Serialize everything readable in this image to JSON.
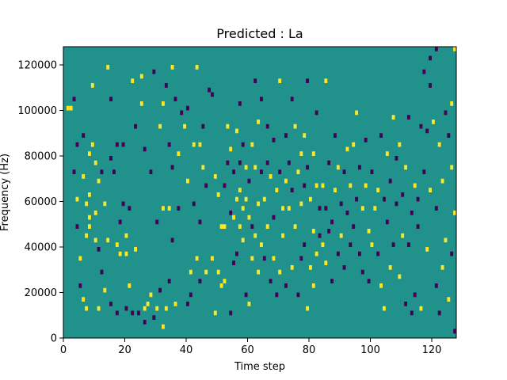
{
  "chart_data": {
    "type": "heatmap",
    "title": "Predicted : La",
    "xlabel": "Time step",
    "ylabel": "Frequency (Hz)",
    "xlim": [
      0,
      128
    ],
    "ylim": [
      0,
      128000
    ],
    "xticks": [
      0,
      20,
      40,
      60,
      80,
      100,
      120
    ],
    "yticks": [
      0,
      20000,
      40000,
      60000,
      80000,
      100000,
      120000
    ],
    "xtick_labels": [
      "0",
      "20",
      "40",
      "60",
      "80",
      "100",
      "120"
    ],
    "ytick_labels": [
      "0",
      "20000",
      "40000",
      "60000",
      "80000",
      "100000",
      "120000"
    ],
    "colors": {
      "background": "#21918c",
      "high": "#fde725",
      "low": "#440154"
    },
    "value_legend": {
      "background": 0,
      "high": 1,
      "low": -1
    },
    "cell_height_hz": 2000,
    "cells": [
      [
        1,
        100000,
        1
      ],
      [
        2,
        100000,
        1
      ],
      [
        3,
        72000,
        -1
      ],
      [
        3,
        104000,
        -1
      ],
      [
        4,
        84000,
        -1
      ],
      [
        4,
        60000,
        1
      ],
      [
        4,
        48000,
        -1
      ],
      [
        5,
        34000,
        1
      ],
      [
        5,
        22000,
        -1
      ],
      [
        6,
        88000,
        -1
      ],
      [
        6,
        70000,
        1
      ],
      [
        6,
        16000,
        1
      ],
      [
        7,
        58000,
        1
      ],
      [
        7,
        44000,
        1
      ],
      [
        7,
        12000,
        1
      ],
      [
        8,
        80000,
        1
      ],
      [
        8,
        62000,
        1
      ],
      [
        8,
        52000,
        1
      ],
      [
        8,
        48000,
        1
      ],
      [
        9,
        110000,
        1
      ],
      [
        9,
        84000,
        1
      ],
      [
        10,
        76000,
        1
      ],
      [
        10,
        54000,
        1
      ],
      [
        10,
        42000,
        1
      ],
      [
        11,
        68000,
        1
      ],
      [
        11,
        38000,
        -1
      ],
      [
        11,
        12000,
        1
      ],
      [
        12,
        72000,
        -1
      ],
      [
        12,
        28000,
        -1
      ],
      [
        13,
        58000,
        1
      ],
      [
        13,
        20000,
        1
      ],
      [
        14,
        118000,
        1
      ],
      [
        14,
        42000,
        1
      ],
      [
        15,
        104000,
        -1
      ],
      [
        15,
        78000,
        -1
      ],
      [
        15,
        14000,
        -1
      ],
      [
        16,
        72000,
        -1
      ],
      [
        17,
        84000,
        -1
      ],
      [
        17,
        40000,
        1
      ],
      [
        17,
        10000,
        -1
      ],
      [
        18,
        50000,
        -1
      ],
      [
        18,
        36000,
        1
      ],
      [
        19,
        84000,
        -1
      ],
      [
        19,
        58000,
        -1
      ],
      [
        20,
        44000,
        1
      ],
      [
        20,
        36000,
        1
      ],
      [
        20,
        12000,
        -1
      ],
      [
        21,
        56000,
        -1
      ],
      [
        21,
        22000,
        1
      ],
      [
        22,
        112000,
        1
      ],
      [
        22,
        10000,
        -1
      ],
      [
        23,
        92000,
        -1
      ],
      [
        23,
        38000,
        1
      ],
      [
        24,
        10000,
        -1
      ],
      [
        25,
        102000,
        1
      ],
      [
        25,
        114000,
        1
      ],
      [
        26,
        82000,
        -1
      ],
      [
        26,
        12000,
        1
      ],
      [
        26,
        6000,
        -1
      ],
      [
        27,
        14000,
        1
      ],
      [
        28,
        72000,
        -1
      ],
      [
        28,
        18000,
        1
      ],
      [
        29,
        116000,
        -1
      ],
      [
        29,
        8000,
        -1
      ],
      [
        30,
        50000,
        -1
      ],
      [
        30,
        12000,
        1
      ],
      [
        31,
        92000,
        1
      ],
      [
        31,
        20000,
        -1
      ],
      [
        32,
        102000,
        1
      ],
      [
        32,
        56000,
        1
      ],
      [
        32,
        4000,
        1
      ],
      [
        33,
        110000,
        -1
      ],
      [
        33,
        12000,
        1
      ],
      [
        34,
        84000,
        -1
      ],
      [
        34,
        56000,
        1
      ],
      [
        34,
        24000,
        -1
      ],
      [
        35,
        118000,
        1
      ],
      [
        35,
        74000,
        -1
      ],
      [
        35,
        42000,
        -1
      ],
      [
        36,
        104000,
        -1
      ],
      [
        36,
        14000,
        1
      ],
      [
        37,
        80000,
        1
      ],
      [
        37,
        56000,
        -1
      ],
      [
        38,
        98000,
        -1
      ],
      [
        39,
        92000,
        1
      ],
      [
        40,
        100000,
        -1
      ],
      [
        40,
        68000,
        1
      ],
      [
        40,
        14000,
        -1
      ],
      [
        41,
        28000,
        1
      ],
      [
        41,
        18000,
        -1
      ],
      [
        42,
        84000,
        1
      ],
      [
        42,
        58000,
        -1
      ],
      [
        43,
        118000,
        1
      ],
      [
        43,
        34000,
        1
      ],
      [
        44,
        84000,
        1
      ],
      [
        44,
        50000,
        -1
      ],
      [
        44,
        24000,
        -1
      ],
      [
        45,
        92000,
        -1
      ],
      [
        45,
        74000,
        1
      ],
      [
        46,
        66000,
        -1
      ],
      [
        46,
        28000,
        1
      ],
      [
        47,
        108000,
        -1
      ],
      [
        48,
        106000,
        -1
      ],
      [
        48,
        34000,
        1
      ],
      [
        49,
        70000,
        1
      ],
      [
        49,
        10000,
        1
      ],
      [
        50,
        62000,
        1
      ],
      [
        50,
        28000,
        1
      ],
      [
        51,
        48000,
        1
      ],
      [
        51,
        22000,
        1
      ],
      [
        52,
        66000,
        -1
      ],
      [
        52,
        48000,
        1
      ],
      [
        52,
        24000,
        1
      ],
      [
        53,
        92000,
        1
      ],
      [
        53,
        76000,
        -1
      ],
      [
        54,
        82000,
        1
      ],
      [
        54,
        54000,
        -1
      ],
      [
        54,
        10000,
        -1
      ],
      [
        55,
        72000,
        -1
      ],
      [
        55,
        52000,
        1
      ],
      [
        55,
        32000,
        -1
      ],
      [
        56,
        90000,
        1
      ],
      [
        56,
        60000,
        1
      ],
      [
        56,
        36000,
        -1
      ],
      [
        57,
        102000,
        -1
      ],
      [
        57,
        76000,
        -1
      ],
      [
        57,
        64000,
        1
      ],
      [
        57,
        48000,
        1
      ],
      [
        58,
        84000,
        -1
      ],
      [
        58,
        56000,
        1
      ],
      [
        58,
        42000,
        1
      ],
      [
        59,
        74000,
        1
      ],
      [
        59,
        60000,
        1
      ],
      [
        59,
        18000,
        -1
      ],
      [
        60,
        68000,
        -1
      ],
      [
        60,
        52000,
        1
      ],
      [
        60,
        14000,
        1
      ],
      [
        61,
        84000,
        1
      ],
      [
        61,
        48000,
        -1
      ],
      [
        61,
        34000,
        1
      ],
      [
        62,
        112000,
        -1
      ],
      [
        62,
        74000,
        1
      ],
      [
        62,
        44000,
        1
      ],
      [
        63,
        94000,
        1
      ],
      [
        63,
        58000,
        1
      ],
      [
        63,
        28000,
        1
      ],
      [
        64,
        104000,
        -1
      ],
      [
        64,
        72000,
        -1
      ],
      [
        64,
        40000,
        1
      ],
      [
        65,
        60000,
        1
      ],
      [
        65,
        34000,
        -1
      ],
      [
        66,
        92000,
        -1
      ],
      [
        66,
        76000,
        -1
      ],
      [
        66,
        48000,
        1
      ],
      [
        67,
        70000,
        1
      ],
      [
        67,
        24000,
        -1
      ],
      [
        68,
        86000,
        -1
      ],
      [
        68,
        52000,
        -1
      ],
      [
        68,
        34000,
        1
      ],
      [
        69,
        64000,
        1
      ],
      [
        69,
        18000,
        -1
      ],
      [
        70,
        112000,
        1
      ],
      [
        70,
        72000,
        -1
      ],
      [
        70,
        28000,
        1
      ],
      [
        71,
        56000,
        1
      ],
      [
        71,
        44000,
        1
      ],
      [
        72,
        88000,
        -1
      ],
      [
        72,
        68000,
        1
      ],
      [
        72,
        22000,
        -1
      ],
      [
        73,
        76000,
        -1
      ],
      [
        73,
        56000,
        1
      ],
      [
        74,
        104000,
        -1
      ],
      [
        74,
        64000,
        -1
      ],
      [
        74,
        30000,
        1
      ],
      [
        75,
        92000,
        1
      ],
      [
        75,
        48000,
        1
      ],
      [
        76,
        72000,
        1
      ],
      [
        76,
        18000,
        -1
      ],
      [
        77,
        80000,
        1
      ],
      [
        77,
        58000,
        1
      ],
      [
        77,
        34000,
        -1
      ],
      [
        78,
        88000,
        1
      ],
      [
        78,
        66000,
        -1
      ],
      [
        78,
        40000,
        -1
      ],
      [
        79,
        112000,
        -1
      ],
      [
        79,
        74000,
        -1
      ],
      [
        79,
        12000,
        1
      ],
      [
        80,
        60000,
        1
      ],
      [
        80,
        30000,
        1
      ],
      [
        81,
        80000,
        1
      ],
      [
        81,
        46000,
        1
      ],
      [
        81,
        22000,
        1
      ],
      [
        82,
        98000,
        -1
      ],
      [
        82,
        66000,
        1
      ],
      [
        82,
        36000,
        1
      ],
      [
        83,
        56000,
        -1
      ],
      [
        83,
        44000,
        -1
      ],
      [
        84,
        66000,
        1
      ],
      [
        84,
        40000,
        1
      ],
      [
        85,
        112000,
        1
      ],
      [
        85,
        56000,
        -1
      ],
      [
        85,
        32000,
        1
      ],
      [
        86,
        76000,
        -1
      ],
      [
        86,
        46000,
        -1
      ],
      [
        87,
        50000,
        -1
      ],
      [
        87,
        24000,
        -1
      ],
      [
        88,
        88000,
        -1
      ],
      [
        88,
        64000,
        1
      ],
      [
        89,
        74000,
        1
      ],
      [
        89,
        36000,
        -1
      ],
      [
        90,
        58000,
        -1
      ],
      [
        90,
        44000,
        1
      ],
      [
        91,
        72000,
        -1
      ],
      [
        91,
        30000,
        -1
      ],
      [
        92,
        82000,
        1
      ],
      [
        92,
        54000,
        -1
      ],
      [
        93,
        66000,
        1
      ],
      [
        93,
        40000,
        -1
      ],
      [
        94,
        84000,
        1
      ],
      [
        94,
        48000,
        -1
      ],
      [
        95,
        98000,
        1
      ],
      [
        95,
        60000,
        -1
      ],
      [
        96,
        74000,
        -1
      ],
      [
        96,
        36000,
        -1
      ],
      [
        97,
        56000,
        1
      ],
      [
        97,
        28000,
        -1
      ],
      [
        98,
        86000,
        -1
      ],
      [
        98,
        66000,
        1
      ],
      [
        99,
        46000,
        1
      ],
      [
        99,
        24000,
        -1
      ],
      [
        100,
        72000,
        -1
      ],
      [
        100,
        40000,
        1
      ],
      [
        101,
        56000,
        1
      ],
      [
        102,
        64000,
        1
      ],
      [
        102,
        36000,
        -1
      ],
      [
        103,
        88000,
        -1
      ],
      [
        103,
        22000,
        1
      ],
      [
        104,
        60000,
        -1
      ],
      [
        104,
        12000,
        1
      ],
      [
        105,
        80000,
        1
      ],
      [
        105,
        50000,
        -1
      ],
      [
        106,
        68000,
        -1
      ],
      [
        106,
        30000,
        1
      ],
      [
        107,
        96000,
        1
      ],
      [
        107,
        40000,
        -1
      ],
      [
        108,
        78000,
        -1
      ],
      [
        108,
        58000,
        -1
      ],
      [
        109,
        84000,
        1
      ],
      [
        109,
        26000,
        1
      ],
      [
        110,
        62000,
        -1
      ],
      [
        110,
        44000,
        1
      ],
      [
        111,
        74000,
        1
      ],
      [
        111,
        14000,
        -1
      ],
      [
        112,
        96000,
        -1
      ],
      [
        112,
        40000,
        -1
      ],
      [
        113,
        54000,
        -1
      ],
      [
        113,
        10000,
        -1
      ],
      [
        114,
        66000,
        1
      ],
      [
        114,
        18000,
        -1
      ],
      [
        115,
        60000,
        -1
      ],
      [
        115,
        48000,
        -1
      ],
      [
        116,
        92000,
        -1
      ],
      [
        116,
        12000,
        1
      ],
      [
        117,
        116000,
        -1
      ],
      [
        117,
        72000,
        -1
      ],
      [
        118,
        90000,
        -1
      ],
      [
        118,
        38000,
        1
      ],
      [
        119,
        110000,
        -1
      ],
      [
        119,
        64000,
        1
      ],
      [
        120,
        94000,
        1
      ],
      [
        121,
        56000,
        -1
      ],
      [
        121,
        22000,
        -1
      ],
      [
        122,
        84000,
        1
      ],
      [
        122,
        10000,
        -1
      ],
      [
        123,
        68000,
        1
      ],
      [
        123,
        30000,
        1
      ],
      [
        124,
        98000,
        -1
      ],
      [
        124,
        42000,
        1
      ],
      [
        125,
        88000,
        -1
      ],
      [
        125,
        16000,
        1
      ],
      [
        126,
        74000,
        1
      ],
      [
        126,
        36000,
        -1
      ],
      [
        127,
        126000,
        1
      ],
      [
        127,
        2000,
        -1
      ],
      [
        121,
        126000,
        -1
      ],
      [
        119,
        122000,
        -1
      ],
      [
        126,
        102000,
        1
      ],
      [
        127,
        54000,
        1
      ]
    ]
  }
}
